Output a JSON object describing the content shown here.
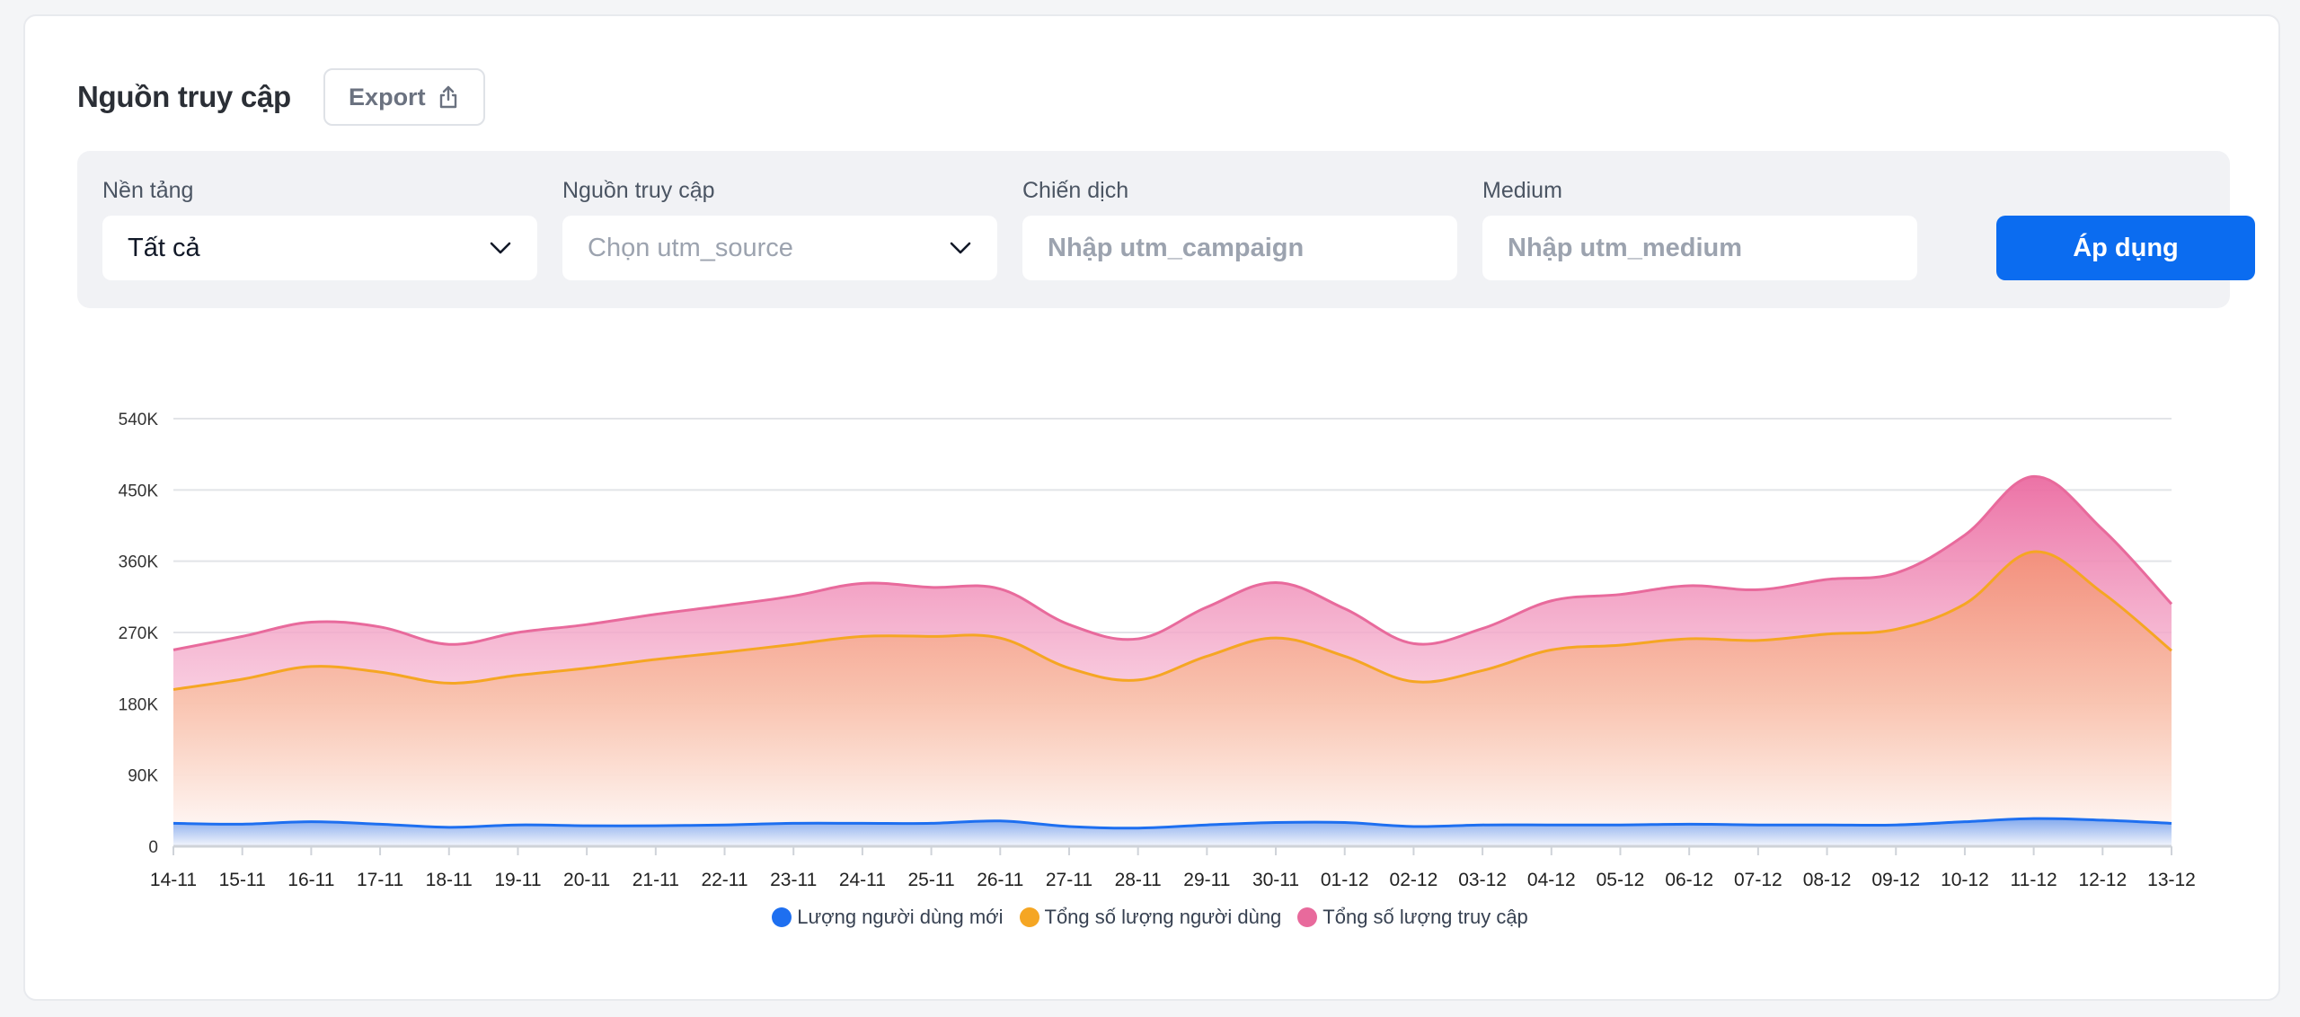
{
  "header": {
    "title": "Nguồn truy cập",
    "export_label": "Export"
  },
  "filters": {
    "platform": {
      "label": "Nền tảng",
      "value": "Tất cả"
    },
    "source": {
      "label": "Nguồn truy cập",
      "placeholder": "Chọn utm_source"
    },
    "campaign": {
      "label": "Chiến dịch",
      "placeholder": "Nhập utm_campaign"
    },
    "medium": {
      "label": "Medium",
      "placeholder": "Nhập utm_medium"
    },
    "apply_label": "Áp dụng"
  },
  "colors": {
    "accent": "#0b6cf0",
    "new_users": "#1e6ff0",
    "total_users": "#f5a623",
    "total_visits": "#e86a9c"
  },
  "chart_data": {
    "type": "area",
    "title": "",
    "xlabel": "",
    "ylabel": "",
    "ylim": [
      0,
      540000
    ],
    "yticks": [
      0,
      90000,
      180000,
      270000,
      360000,
      450000,
      540000
    ],
    "ytick_labels": [
      "0",
      "90K",
      "180K",
      "270K",
      "360K",
      "450K",
      "540K"
    ],
    "categories": [
      "14-11",
      "15-11",
      "16-11",
      "17-11",
      "18-11",
      "19-11",
      "20-11",
      "21-11",
      "22-11",
      "23-11",
      "24-11",
      "25-11",
      "26-11",
      "27-11",
      "28-11",
      "29-11",
      "30-11",
      "01-12",
      "02-12",
      "03-12",
      "04-12",
      "05-12",
      "06-12",
      "07-12",
      "08-12",
      "09-12",
      "10-12",
      "11-12",
      "12-12",
      "13-12"
    ],
    "series": [
      {
        "name": "Tổng số lượng truy cập",
        "color": "#e86a9c",
        "values": [
          248000,
          265000,
          283000,
          277000,
          255000,
          270000,
          280000,
          293000,
          304000,
          316000,
          332000,
          327000,
          325000,
          280000,
          262000,
          302000,
          333000,
          300000,
          256000,
          275000,
          310000,
          318000,
          329000,
          324000,
          337000,
          345000,
          393000,
          467000,
          400000,
          306000
        ]
      },
      {
        "name": "Tổng số lượng người dùng",
        "color": "#f5a623",
        "values": [
          198000,
          211000,
          227000,
          220000,
          206000,
          216000,
          225000,
          236000,
          245000,
          255000,
          265000,
          265000,
          263000,
          225000,
          210000,
          240000,
          263000,
          240000,
          208000,
          222000,
          248000,
          254000,
          262000,
          260000,
          268000,
          274000,
          306000,
          372000,
          320000,
          247000
        ]
      },
      {
        "name": "Lượng người dùng mới",
        "color": "#1e6ff0",
        "values": [
          29000,
          28000,
          31000,
          28000,
          24000,
          27000,
          26000,
          26000,
          27000,
          29000,
          29000,
          29000,
          32000,
          25000,
          23000,
          27000,
          30000,
          30000,
          25000,
          27000,
          27000,
          27000,
          28000,
          27000,
          27000,
          27000,
          31000,
          35000,
          33000,
          29000
        ]
      }
    ],
    "legend_position": "bottom-center",
    "legend": [
      "Lượng người dùng mới",
      "Tổng số lượng người dùng",
      "Tổng số lượng truy cập"
    ]
  }
}
